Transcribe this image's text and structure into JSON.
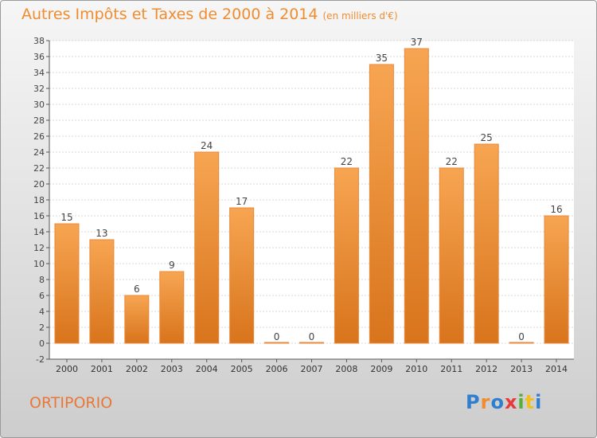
{
  "title": "Autres Impôts et Taxes de 2000 à 2014",
  "unit": "(en milliers d'€)",
  "commune": "ORTIPORIO",
  "brand": {
    "text": "Proxiti",
    "letters": [
      "P",
      "r",
      "o",
      "x",
      "i",
      "t",
      "i"
    ],
    "colors": [
      "#2f7fd0",
      "#f08c30",
      "#2f7fd0",
      "#e83a3a",
      "#56b035",
      "#f0c020",
      "#2f7fd0"
    ]
  },
  "colors": {
    "bar_top": "#f7a552",
    "bar_bottom": "#d8741c",
    "title": "#f08c30"
  },
  "chart_data": {
    "type": "bar",
    "categories": [
      "2000",
      "2001",
      "2002",
      "2003",
      "2004",
      "2005",
      "2006",
      "2007",
      "2008",
      "2009",
      "2010",
      "2011",
      "2012",
      "2013",
      "2014"
    ],
    "values": [
      15,
      13,
      6,
      9,
      24,
      17,
      0,
      0,
      22,
      35,
      37,
      22,
      25,
      0,
      16
    ],
    "title": "Autres Impôts et Taxes de 2000 à 2014",
    "ylim": [
      -2,
      38
    ],
    "yticks": [
      -2,
      0,
      2,
      4,
      6,
      8,
      10,
      12,
      14,
      16,
      18,
      20,
      22,
      24,
      26,
      28,
      30,
      32,
      34,
      36,
      38
    ],
    "grid": true
  }
}
